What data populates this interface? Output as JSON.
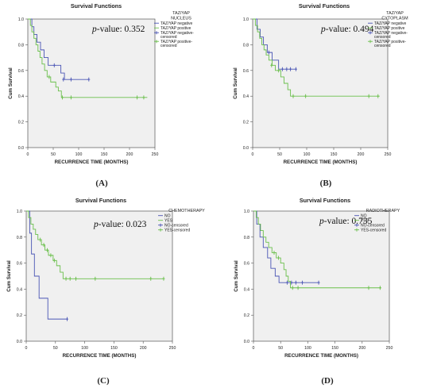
{
  "chart_data": [
    {
      "id": "A",
      "type": "line",
      "title": "Survival Functions",
      "xlabel": "RECURRENCE TIME (MONTHS)",
      "ylabel": "Cum Survival",
      "xlim": [
        0,
        250
      ],
      "ylim": [
        0,
        1.0
      ],
      "xticks": [
        "0",
        "50",
        "100",
        "150",
        "200",
        "250"
      ],
      "yticks": [
        "0.0",
        "0.2",
        "0.4",
        "0.6",
        "0.8",
        "1.0"
      ],
      "legend_title": [
        "TAZ/YAP",
        "NUCLEUS"
      ],
      "legend": [
        "TAZ/YAP negative",
        "TAZ/YAP positive",
        "TAZ/YAP negative-censored",
        "TAZ/YAP positive-censored"
      ],
      "legend_placement": "right",
      "pvalue_label": "p",
      "pvalue_text": "-value: 0.352",
      "panel_label": "(A)",
      "series": [
        {
          "name": "TAZ/YAP negative",
          "color": "#4a55b5",
          "steps": [
            [
              0,
              1.0
            ],
            [
              8,
              0.94
            ],
            [
              12,
              0.88
            ],
            [
              18,
              0.82
            ],
            [
              25,
              0.76
            ],
            [
              32,
              0.7
            ],
            [
              40,
              0.64
            ],
            [
              55,
              0.64
            ],
            [
              65,
              0.58
            ],
            [
              72,
              0.53
            ],
            [
              120,
              0.53
            ]
          ],
          "censored": [
            [
              52,
              0.64
            ],
            [
              70,
              0.53
            ],
            [
              85,
              0.53
            ],
            [
              120,
              0.53
            ]
          ]
        },
        {
          "name": "TAZ/YAP positive",
          "color": "#6abf4b",
          "steps": [
            [
              0,
              1.0
            ],
            [
              5,
              0.95
            ],
            [
              8,
              0.9
            ],
            [
              12,
              0.85
            ],
            [
              16,
              0.8
            ],
            [
              20,
              0.75
            ],
            [
              24,
              0.7
            ],
            [
              28,
              0.65
            ],
            [
              33,
              0.6
            ],
            [
              38,
              0.55
            ],
            [
              45,
              0.51
            ],
            [
              55,
              0.47
            ],
            [
              60,
              0.44
            ],
            [
              66,
              0.39
            ],
            [
              235,
              0.39
            ]
          ],
          "censored": [
            [
              42,
              0.55
            ],
            [
              68,
              0.39
            ],
            [
              85,
              0.39
            ],
            [
              215,
              0.39
            ],
            [
              228,
              0.39
            ]
          ]
        }
      ]
    },
    {
      "id": "B",
      "type": "line",
      "title": "Survival Functions",
      "xlabel": "RECURRENCE TIME (MONTHS)",
      "ylabel": "Cum Survival",
      "xlim": [
        0,
        250
      ],
      "ylim": [
        0,
        1.0
      ],
      "xticks": [
        "0",
        "50",
        "100",
        "150",
        "200",
        "250"
      ],
      "yticks": [
        "0.0",
        "0.2",
        "0.4",
        "0.6",
        "0.8",
        "1.0"
      ],
      "legend_title": [
        "TAZ/YAP",
        "CYTOPLASM"
      ],
      "legend": [
        "TAZ/YAP negative",
        "TAZ/YAP positive",
        "TAZ/YAP negative-censored",
        "TAZ/YAP positive-censored"
      ],
      "legend_placement": "right",
      "pvalue_label": "p",
      "pvalue_text": "-value: 0.494",
      "panel_label": "(B)",
      "series": [
        {
          "name": "TAZ/YAP negative",
          "color": "#4a55b5",
          "steps": [
            [
              0,
              1.0
            ],
            [
              8,
              0.92
            ],
            [
              14,
              0.86
            ],
            [
              20,
              0.8
            ],
            [
              27,
              0.74
            ],
            [
              36,
              0.68
            ],
            [
              48,
              0.61
            ],
            [
              80,
              0.61
            ]
          ],
          "censored": [
            [
              30,
              0.74
            ],
            [
              55,
              0.61
            ],
            [
              63,
              0.61
            ],
            [
              70,
              0.61
            ],
            [
              80,
              0.61
            ]
          ]
        },
        {
          "name": "TAZ/YAP positive",
          "color": "#6abf4b",
          "steps": [
            [
              0,
              1.0
            ],
            [
              5,
              0.95
            ],
            [
              9,
              0.9
            ],
            [
              13,
              0.85
            ],
            [
              17,
              0.8
            ],
            [
              21,
              0.76
            ],
            [
              25,
              0.72
            ],
            [
              30,
              0.68
            ],
            [
              36,
              0.64
            ],
            [
              42,
              0.6
            ],
            [
              52,
              0.55
            ],
            [
              58,
              0.5
            ],
            [
              65,
              0.45
            ],
            [
              70,
              0.4
            ],
            [
              235,
              0.4
            ]
          ],
          "censored": [
            [
              35,
              0.64
            ],
            [
              48,
              0.6
            ],
            [
              75,
              0.4
            ],
            [
              98,
              0.4
            ],
            [
              215,
              0.4
            ],
            [
              232,
              0.4
            ]
          ]
        }
      ]
    },
    {
      "id": "C",
      "type": "line",
      "title": "Survival Functions",
      "xlabel": "RECURRENCE TIME (MONTHS)",
      "ylabel": "Cum Survival",
      "xlim": [
        0,
        250
      ],
      "ylim": [
        0,
        1.0
      ],
      "xticks": [
        "0",
        "50",
        "100",
        "150",
        "200",
        "250"
      ],
      "yticks": [
        "0.0",
        "0.2",
        "0.4",
        "0.6",
        "0.8",
        "1.0"
      ],
      "legend_title": [
        "CHEMOTHERAPY"
      ],
      "legend": [
        "NO",
        "YES",
        "NO-censored",
        "YES-censored"
      ],
      "legend_placement": "right",
      "pvalue_label": "p",
      "pvalue_text": "-value: 0.023",
      "panel_label": "(C)",
      "series": [
        {
          "name": "NO",
          "color": "#4a55b5",
          "steps": [
            [
              0,
              1.0
            ],
            [
              6,
              0.83
            ],
            [
              9,
              0.67
            ],
            [
              14,
              0.5
            ],
            [
              22,
              0.33
            ],
            [
              37,
              0.17
            ],
            [
              70,
              0.17
            ]
          ],
          "censored": [
            [
              70,
              0.17
            ]
          ]
        },
        {
          "name": "YES",
          "color": "#6abf4b",
          "steps": [
            [
              0,
              1.0
            ],
            [
              4,
              0.95
            ],
            [
              8,
              0.9
            ],
            [
              12,
              0.86
            ],
            [
              16,
              0.82
            ],
            [
              20,
              0.78
            ],
            [
              26,
              0.74
            ],
            [
              32,
              0.7
            ],
            [
              38,
              0.66
            ],
            [
              46,
              0.62
            ],
            [
              52,
              0.58
            ],
            [
              58,
              0.53
            ],
            [
              63,
              0.48
            ],
            [
              235,
              0.48
            ]
          ],
          "censored": [
            [
              24,
              0.78
            ],
            [
              30,
              0.74
            ],
            [
              36,
              0.7
            ],
            [
              42,
              0.66
            ],
            [
              48,
              0.62
            ],
            [
              68,
              0.48
            ],
            [
              75,
              0.48
            ],
            [
              85,
              0.48
            ],
            [
              118,
              0.48
            ],
            [
              213,
              0.48
            ],
            [
              235,
              0.48
            ]
          ]
        }
      ]
    },
    {
      "id": "D",
      "type": "line",
      "title": "Survival Functions",
      "xlabel": "RECURRENCE TIME (MONTHS)",
      "ylabel": "Cum Survival",
      "xlim": [
        0,
        250
      ],
      "ylim": [
        0,
        1.0
      ],
      "xticks": [
        "0",
        "50",
        "100",
        "150",
        "200",
        "250"
      ],
      "yticks": [
        "0.0",
        "0.2",
        "0.4",
        "0.6",
        "0.8",
        "1.0"
      ],
      "legend_title": [
        "RADIOTHERAPY"
      ],
      "legend": [
        "NO",
        "YES",
        "NO-censored",
        "YES-censored"
      ],
      "legend_placement": "right",
      "pvalue_label": "p",
      "pvalue_text": "-value: 0.735",
      "panel_label": "(D)",
      "series": [
        {
          "name": "NO",
          "color": "#4a55b5",
          "steps": [
            [
              0,
              1.0
            ],
            [
              6,
              0.9
            ],
            [
              12,
              0.8
            ],
            [
              18,
              0.72
            ],
            [
              26,
              0.64
            ],
            [
              32,
              0.56
            ],
            [
              40,
              0.5
            ],
            [
              47,
              0.45
            ],
            [
              120,
              0.45
            ]
          ],
          "censored": [
            [
              62,
              0.45
            ],
            [
              70,
              0.45
            ],
            [
              78,
              0.45
            ],
            [
              90,
              0.45
            ],
            [
              120,
              0.45
            ]
          ]
        },
        {
          "name": "YES",
          "color": "#6abf4b",
          "steps": [
            [
              0,
              1.0
            ],
            [
              5,
              0.95
            ],
            [
              9,
              0.9
            ],
            [
              13,
              0.85
            ],
            [
              18,
              0.8
            ],
            [
              23,
              0.76
            ],
            [
              28,
              0.72
            ],
            [
              34,
              0.68
            ],
            [
              42,
              0.64
            ],
            [
              50,
              0.6
            ],
            [
              56,
              0.55
            ],
            [
              60,
              0.5
            ],
            [
              64,
              0.46
            ],
            [
              68,
              0.41
            ],
            [
              235,
              0.41
            ]
          ],
          "censored": [
            [
              38,
              0.68
            ],
            [
              46,
              0.64
            ],
            [
              72,
              0.41
            ],
            [
              82,
              0.41
            ],
            [
              212,
              0.41
            ],
            [
              233,
              0.41
            ]
          ]
        }
      ]
    }
  ]
}
